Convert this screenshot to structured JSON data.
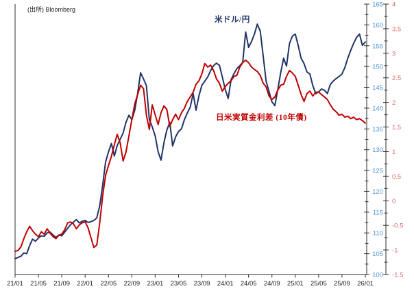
{
  "source_note": "(出所) Bloomberg",
  "colors": {
    "usdjpy_line": "#1f3468",
    "rate_diff_line": "#c00000",
    "usdjpy_axis_label": "#4f93d6",
    "rate_diff_axis_label": "#dd6a66",
    "axis_line": "#2b2b2b",
    "x_axis_label": "#1a1a1a",
    "background": "#ffffff"
  },
  "chart_data": {
    "type": "line",
    "title": "",
    "grid": false,
    "legend": "inline text annotations on chart",
    "x_unit": "months (YY/MM), monthly ticks every 4 months from 2021-01 to 2026-01",
    "x_range_months": [
      0,
      60
    ],
    "x_tick_labels": [
      "21/01",
      "21/05",
      "21/09",
      "22/01",
      "22/05",
      "22/09",
      "23/01",
      "23/05",
      "23/09",
      "24/01",
      "24/05",
      "24/09",
      "25/01",
      "25/05",
      "25/09",
      "26/01"
    ],
    "y_axis_usdjpy": {
      "side": "right-inner",
      "min": 100,
      "max": 165,
      "major_tick_step": 5,
      "minor_tick_step": 2.5,
      "labels": [
        "165",
        "160",
        "155",
        "150",
        "145",
        "140",
        "135",
        "130",
        "125",
        "120",
        "115",
        "110",
        "105",
        "100"
      ]
    },
    "y_axis_rate_diff": {
      "side": "right-outer",
      "min": -1.5,
      "max": 4,
      "major_tick_step": 0.5,
      "minor_tick_step": 0.25,
      "labels": [
        "4",
        "3.5",
        "3",
        "2.5",
        "2",
        "1.5",
        "1",
        "0.5",
        "0",
        "-0.5",
        "-1",
        "-1.5"
      ]
    },
    "series": [
      {
        "name": "米ドル/円",
        "axis": "y_axis_usdjpy",
        "color": "#1f3468",
        "x_start_month": 0,
        "x_step_months": 0.5,
        "values": [
          103.8,
          104.1,
          104.4,
          105.2,
          105.0,
          107.0,
          108.5,
          108.0,
          108.8,
          109.3,
          109.2,
          110.0,
          110.2,
          109.5,
          108.9,
          109.5,
          109.3,
          110.2,
          111.1,
          112.0,
          112.6,
          113.2,
          112.4,
          112.8,
          113.0,
          112.5,
          112.7,
          113.0,
          113.6,
          116.5,
          121.5,
          127.0,
          129.5,
          131.5,
          128.5,
          131.0,
          132.5,
          134.0,
          136.6,
          138.3,
          137.2,
          139.5,
          143.5,
          148.5,
          147.0,
          145.4,
          137.2,
          135.5,
          133.3,
          129.5,
          127.5,
          131.7,
          134.7,
          136.6,
          130.9,
          133.1,
          134.4,
          135.0,
          137.2,
          138.8,
          140.2,
          143.5,
          139.5,
          143.0,
          145.5,
          146.5,
          147.5,
          149.0,
          150.2,
          150.8,
          150.3,
          147.5,
          144.5,
          142.3,
          146.8,
          148.3,
          149.5,
          150.2,
          151.0,
          158.3,
          154.6,
          156.0,
          157.8,
          160.2,
          158.5,
          152.5,
          146.5,
          144.0,
          141.5,
          140.6,
          144.5,
          148.5,
          152.0,
          150.1,
          155.5,
          157.3,
          157.8,
          155.0,
          152.0,
          150.7,
          148.7,
          148.2,
          145.4,
          143.5,
          143.9,
          144.6,
          144.3,
          143.5,
          145.7,
          146.5,
          147.1,
          147.6,
          148.2,
          149.8,
          152.0,
          153.9,
          155.6,
          157.0,
          157.8,
          155.1,
          155.9
        ]
      },
      {
        "name": "日米実質金利差 (10年債)",
        "axis": "y_axis_rate_diff",
        "color": "#c00000",
        "x_start_month": 0,
        "x_step_months": 0.5,
        "values": [
          -1.03,
          -1.01,
          -0.94,
          -0.77,
          -0.63,
          -0.52,
          -0.61,
          -0.68,
          -0.73,
          -0.63,
          -0.68,
          -0.57,
          -0.66,
          -0.73,
          -0.77,
          -0.7,
          -0.68,
          -0.59,
          -0.45,
          -0.43,
          -0.47,
          -0.57,
          -0.49,
          -0.45,
          -0.43,
          -0.55,
          -0.75,
          -0.95,
          -0.9,
          -0.45,
          0.1,
          0.51,
          0.72,
          0.9,
          1.14,
          1.35,
          1.18,
          0.81,
          0.99,
          1.32,
          1.65,
          1.97,
          2.16,
          2.35,
          2.28,
          1.74,
          1.45,
          1.95,
          1.75,
          1.55,
          1.79,
          1.93,
          1.86,
          1.51,
          1.65,
          1.76,
          1.65,
          1.79,
          1.88,
          2.02,
          2.11,
          2.21,
          2.37,
          2.44,
          2.58,
          2.79,
          2.72,
          2.76,
          2.65,
          2.48,
          2.39,
          2.23,
          2.32,
          2.39,
          2.44,
          2.53,
          2.55,
          2.72,
          2.81,
          2.86,
          2.81,
          2.72,
          2.67,
          2.63,
          2.55,
          2.39,
          2.32,
          2.13,
          2.06,
          2.11,
          2.25,
          2.35,
          2.37,
          2.53,
          2.65,
          2.6,
          2.53,
          2.35,
          2.16,
          2.02,
          2.18,
          2.23,
          2.13,
          2.21,
          2.21,
          2.16,
          2.11,
          2.06,
          1.95,
          1.86,
          1.81,
          1.74,
          1.76,
          1.7,
          1.72,
          1.67,
          1.7,
          1.65,
          1.67,
          1.63,
          1.58
        ]
      }
    ]
  }
}
